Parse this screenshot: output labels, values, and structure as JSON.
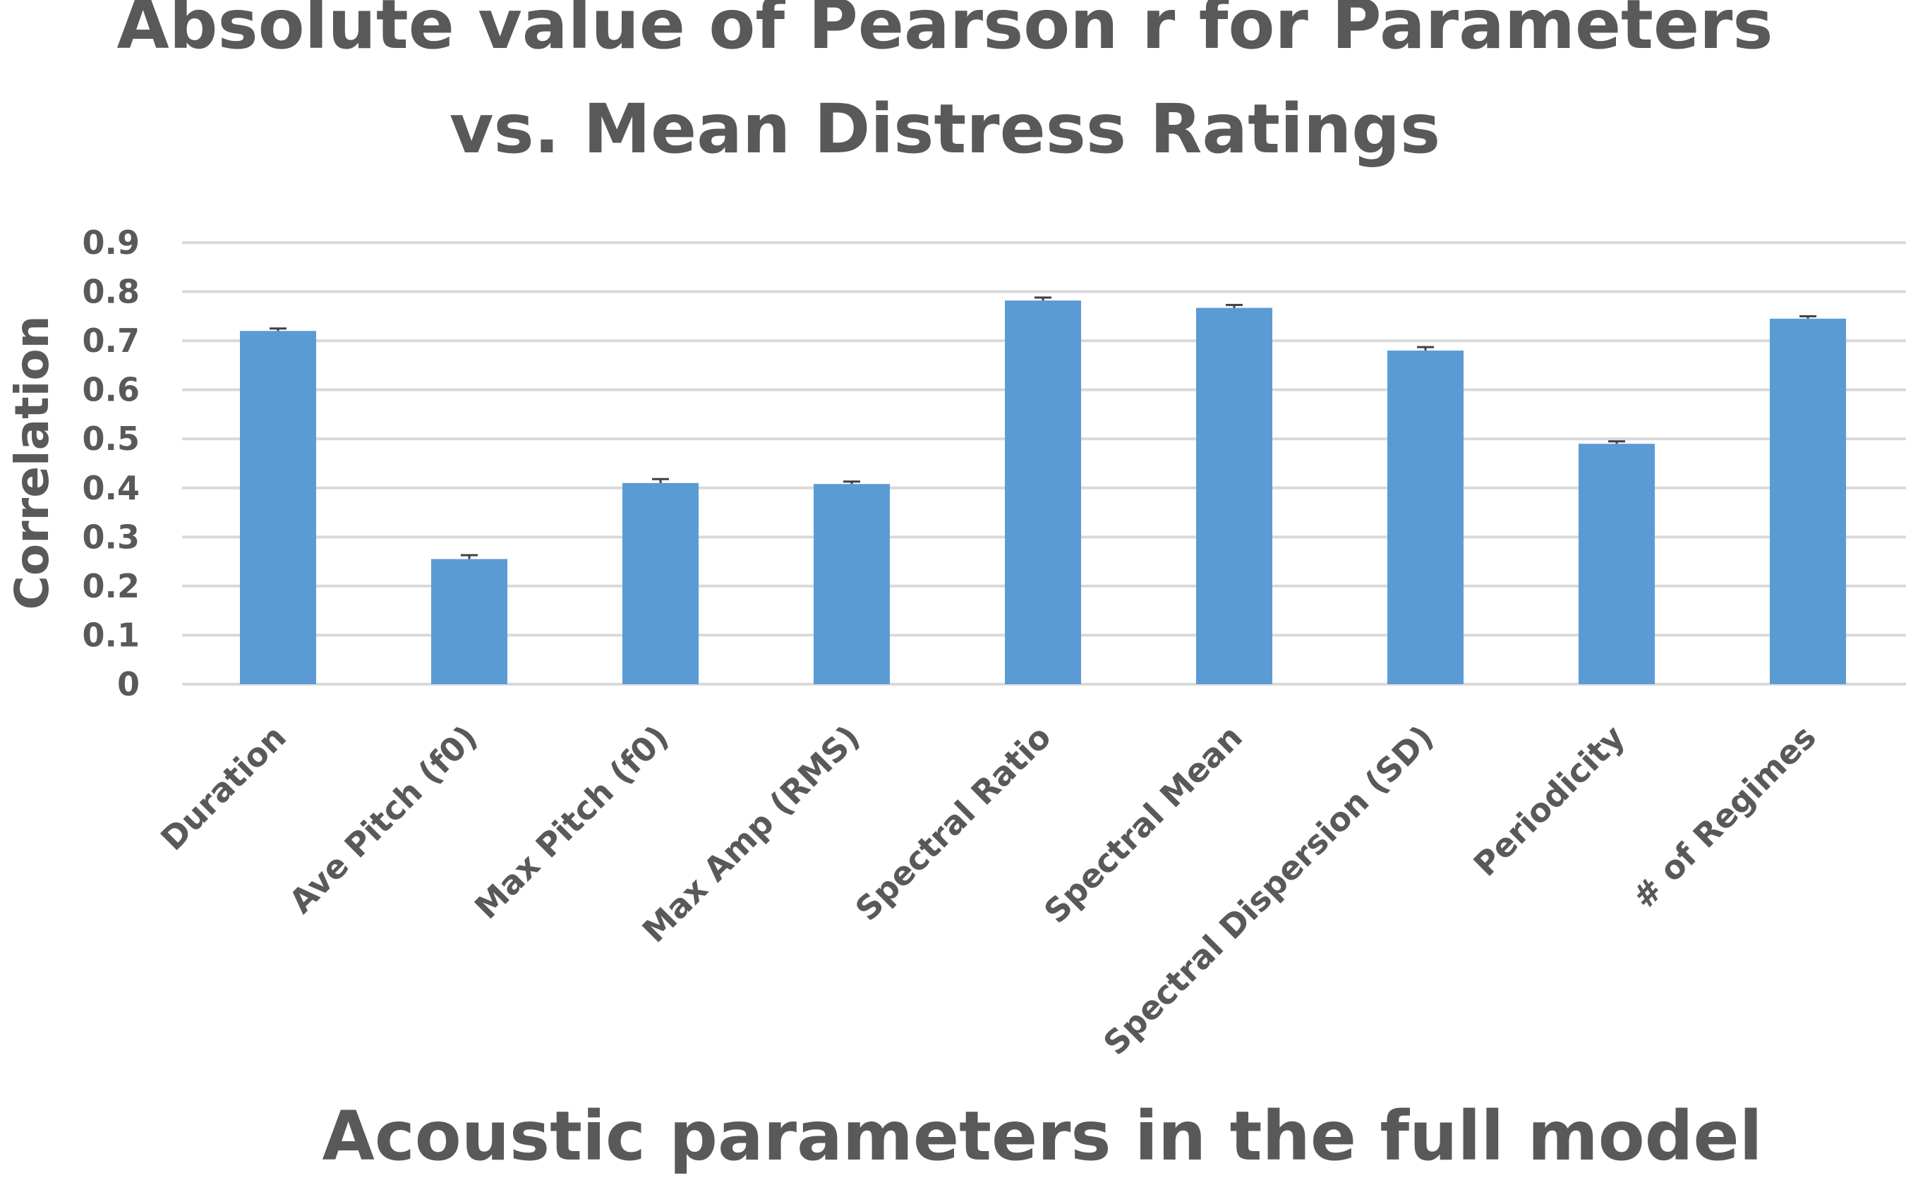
{
  "chart_data": {
    "type": "bar",
    "title_lines": [
      "Absolute value of Pearson r for Parameters",
      "vs. Mean Distress Ratings"
    ],
    "xlabel": "Acoustic parameters in the full model",
    "ylabel": "Correlation",
    "categories": [
      "Duration",
      "Ave Pitch (f0)",
      "Max Pitch (f0)",
      "Max Amp (RMS)",
      "Spectral Ratio",
      "Spectral Mean",
      "Spectral Dispersion (SD)",
      "Periodicity",
      "# of Regimes"
    ],
    "values": [
      0.72,
      0.255,
      0.41,
      0.408,
      0.782,
      0.767,
      0.68,
      0.49,
      0.745
    ],
    "error": [
      0.005,
      0.008,
      0.008,
      0.005,
      0.006,
      0.006,
      0.007,
      0.005,
      0.005
    ],
    "ylim": [
      0,
      0.9
    ],
    "yticks": [
      "0",
      "0.1",
      "0.2",
      "0.3",
      "0.4",
      "0.5",
      "0.6",
      "0.7",
      "0.8",
      "0.9"
    ],
    "grid": true,
    "legend": "none",
    "colors": {
      "bar": "#5b9bd5",
      "text": "#595959",
      "grid": "#d9d9d9",
      "error_bar": "#404040"
    }
  }
}
